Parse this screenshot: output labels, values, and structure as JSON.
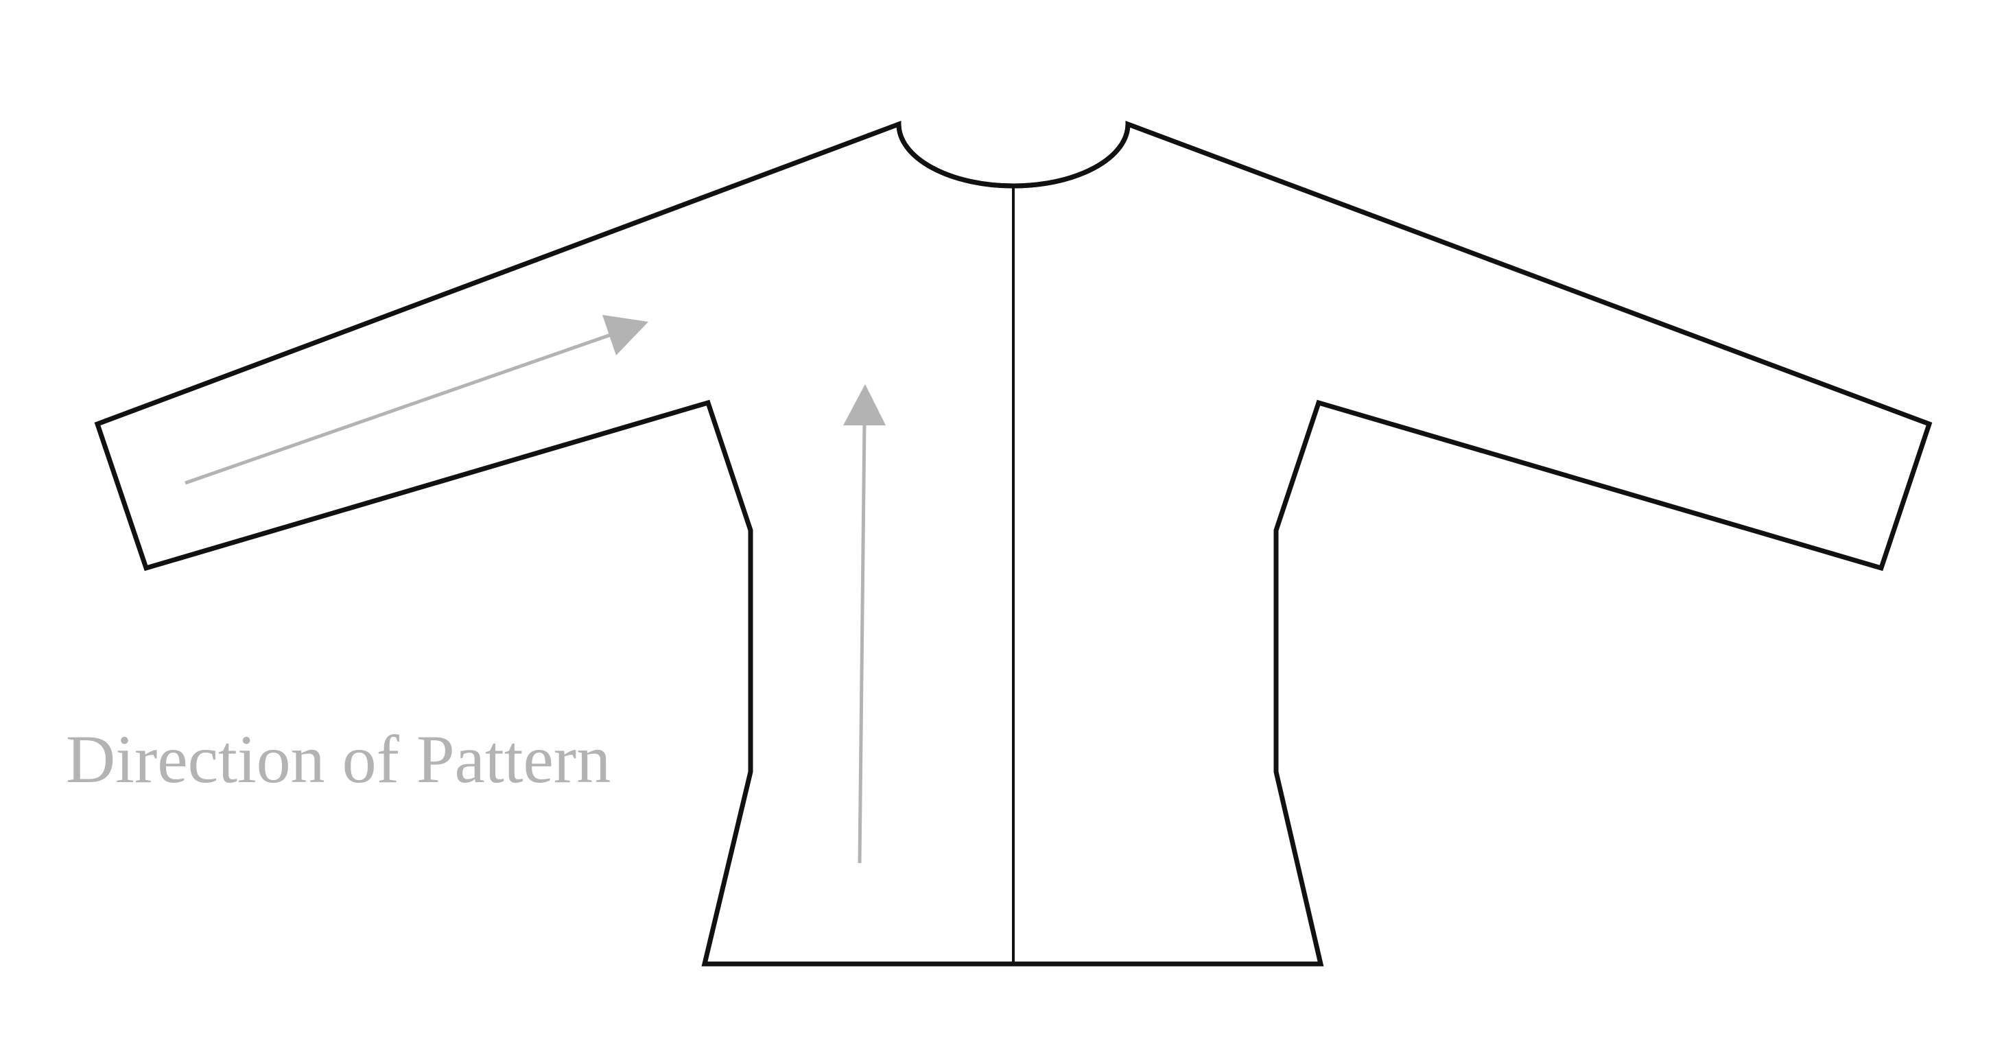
{
  "caption": "Direction of Pattern",
  "colors": {
    "outline": "#111111",
    "arrow": "#b3b3b3",
    "caption": "#b3b3b3",
    "background": "#ffffff"
  },
  "arrows": [
    {
      "name": "sleeve-direction-arrow",
      "orientation": "diagonal"
    },
    {
      "name": "body-direction-arrow",
      "orientation": "vertical"
    }
  ]
}
